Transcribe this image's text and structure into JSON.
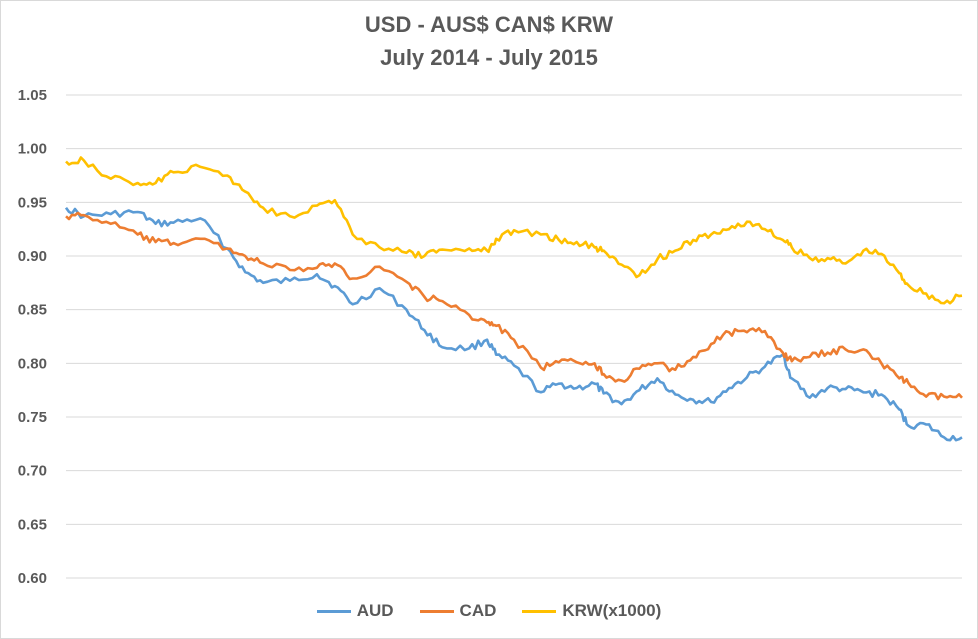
{
  "chart_data": {
    "type": "line",
    "title": "USD - AUS$ CAN$ KRW",
    "subtitle": "July 2014 - July 2015",
    "ylim": [
      0.6,
      1.05
    ],
    "yticks": [
      "0.60",
      "0.65",
      "0.70",
      "0.75",
      "0.80",
      "0.85",
      "0.90",
      "0.95",
      "1.00",
      "1.05"
    ],
    "grid": true,
    "legend_position": "bottom",
    "colors": {
      "AUD": "#5b9bd5",
      "CAD": "#ed7d31",
      "KRW": "#ffc000",
      "grid": "#d9d9d9"
    },
    "series": [
      {
        "name": "AUD",
        "color": "#5b9bd5",
        "x": [
          0,
          0.02,
          0.05,
          0.08,
          0.1,
          0.12,
          0.15,
          0.18,
          0.2,
          0.22,
          0.25,
          0.28,
          0.3,
          0.32,
          0.35,
          0.38,
          0.4,
          0.42,
          0.45,
          0.47,
          0.48,
          0.5,
          0.53,
          0.55,
          0.57,
          0.59,
          0.6,
          0.62,
          0.64,
          0.66,
          0.68,
          0.7,
          0.72,
          0.74,
          0.76,
          0.78,
          0.8,
          0.81,
          0.83,
          0.85,
          0.87,
          0.89,
          0.91,
          0.93,
          0.94,
          0.96,
          0.98,
          1.0
        ],
        "values": [
          0.945,
          0.937,
          0.939,
          0.941,
          0.93,
          0.931,
          0.935,
          0.907,
          0.885,
          0.875,
          0.877,
          0.883,
          0.872,
          0.855,
          0.87,
          0.85,
          0.831,
          0.815,
          0.814,
          0.822,
          0.808,
          0.798,
          0.773,
          0.781,
          0.777,
          0.781,
          0.772,
          0.762,
          0.775,
          0.786,
          0.771,
          0.766,
          0.764,
          0.777,
          0.787,
          0.797,
          0.808,
          0.786,
          0.768,
          0.777,
          0.776,
          0.773,
          0.771,
          0.757,
          0.742,
          0.743,
          0.731,
          0.731
        ]
      },
      {
        "name": "CAD",
        "color": "#ed7d31",
        "x": [
          0,
          0.02,
          0.05,
          0.08,
          0.1,
          0.12,
          0.15,
          0.18,
          0.2,
          0.22,
          0.25,
          0.28,
          0.3,
          0.32,
          0.35,
          0.38,
          0.4,
          0.42,
          0.45,
          0.47,
          0.48,
          0.5,
          0.53,
          0.55,
          0.57,
          0.59,
          0.6,
          0.62,
          0.64,
          0.66,
          0.68,
          0.7,
          0.72,
          0.74,
          0.76,
          0.78,
          0.8,
          0.81,
          0.83,
          0.85,
          0.87,
          0.89,
          0.91,
          0.93,
          0.94,
          0.96,
          0.98,
          1.0
        ],
        "values": [
          0.937,
          0.938,
          0.93,
          0.92,
          0.913,
          0.912,
          0.916,
          0.907,
          0.9,
          0.893,
          0.887,
          0.889,
          0.893,
          0.879,
          0.89,
          0.876,
          0.862,
          0.858,
          0.845,
          0.838,
          0.835,
          0.822,
          0.796,
          0.801,
          0.801,
          0.8,
          0.79,
          0.784,
          0.795,
          0.8,
          0.794,
          0.806,
          0.818,
          0.829,
          0.829,
          0.83,
          0.81,
          0.802,
          0.806,
          0.81,
          0.813,
          0.813,
          0.8,
          0.786,
          0.782,
          0.769,
          0.769,
          0.768
        ]
      },
      {
        "name": "KRW(x1000)",
        "color": "#ffc000",
        "x": [
          0,
          0.02,
          0.05,
          0.08,
          0.1,
          0.12,
          0.15,
          0.18,
          0.2,
          0.22,
          0.25,
          0.28,
          0.3,
          0.32,
          0.35,
          0.38,
          0.4,
          0.42,
          0.45,
          0.47,
          0.48,
          0.5,
          0.53,
          0.55,
          0.57,
          0.59,
          0.6,
          0.62,
          0.64,
          0.66,
          0.68,
          0.7,
          0.72,
          0.74,
          0.76,
          0.78,
          0.8,
          0.81,
          0.83,
          0.85,
          0.87,
          0.89,
          0.91,
          0.93,
          0.94,
          0.96,
          0.98,
          1.0
        ],
        "values": [
          0.988,
          0.989,
          0.972,
          0.968,
          0.968,
          0.978,
          0.983,
          0.975,
          0.96,
          0.945,
          0.937,
          0.947,
          0.952,
          0.92,
          0.908,
          0.903,
          0.9,
          0.906,
          0.907,
          0.905,
          0.916,
          0.924,
          0.92,
          0.915,
          0.913,
          0.908,
          0.905,
          0.892,
          0.882,
          0.897,
          0.905,
          0.915,
          0.92,
          0.925,
          0.932,
          0.925,
          0.915,
          0.908,
          0.898,
          0.898,
          0.893,
          0.905,
          0.902,
          0.884,
          0.873,
          0.865,
          0.856,
          0.863
        ]
      }
    ]
  }
}
